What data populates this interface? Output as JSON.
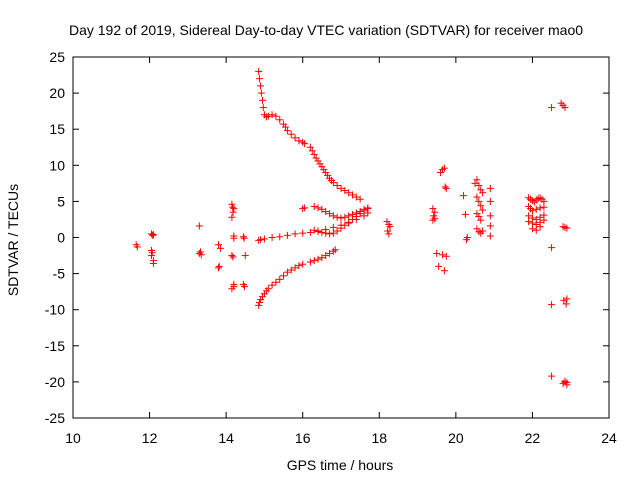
{
  "chart_data": {
    "type": "scatter",
    "title": "Day 192 of 2019, Sidereal Day-to-day VTEC variation (SDTVAR) for receiver mao0",
    "xlabel": "GPS time / hours",
    "ylabel": "SDTVAR / TECUs",
    "xlim": [
      10,
      24
    ],
    "ylim": [
      -25,
      25
    ],
    "xticks": [
      10,
      12,
      14,
      16,
      18,
      20,
      22,
      24
    ],
    "yticks": [
      25,
      20,
      15,
      10,
      5,
      0,
      -5,
      -10,
      -15,
      -20,
      -25
    ],
    "grid": false,
    "marker": "plus",
    "marker_color": "#ff0000",
    "series": [
      {
        "name": "SDTVAR",
        "x": [
          11.65,
          11.68,
          12.05,
          12.08,
          12.1,
          12.05,
          12.07,
          12.1,
          12.1,
          12.05,
          13.3,
          13.33,
          13.35,
          13.3,
          13.8,
          13.85,
          13.82,
          13.8,
          14.15,
          14.17,
          14.2,
          14.18,
          14.15,
          14.2,
          14.2,
          14.15,
          14.18,
          14.2,
          14.15,
          14.2,
          14.45,
          14.47,
          14.5,
          14.45,
          14.48,
          14.85,
          14.87,
          14.9,
          14.92,
          14.95,
          14.97,
          15.0,
          15.05,
          15.1,
          15.2,
          15.3,
          15.4,
          15.5,
          15.55,
          15.6,
          15.7,
          15.8,
          15.9,
          16.0,
          16.05,
          16.2,
          16.25,
          16.3,
          16.35,
          16.4,
          16.45,
          16.5,
          16.55,
          16.6,
          16.65,
          16.7,
          16.75,
          16.8,
          16.9,
          17.0,
          17.1,
          17.2,
          17.3,
          17.4,
          17.5,
          14.85,
          14.9,
          15.0,
          15.2,
          15.4,
          15.6,
          15.8,
          16.0,
          16.2,
          16.4,
          16.6,
          16.8,
          17.0,
          17.2,
          17.4,
          17.6,
          17.7,
          14.85,
          14.87,
          14.9,
          14.95,
          15.0,
          15.05,
          15.1,
          15.2,
          15.3,
          15.4,
          15.5,
          15.6,
          15.7,
          15.8,
          15.9,
          16.0,
          16.2,
          16.3,
          16.4,
          16.5,
          16.6,
          16.7,
          16.8,
          16.85,
          16.0,
          16.05,
          16.3,
          16.4,
          16.5,
          16.6,
          16.7,
          16.8,
          16.9,
          17.0,
          17.1,
          17.2,
          17.3,
          17.4,
          17.5,
          17.6,
          17.7,
          16.3,
          16.4,
          16.5,
          16.6,
          16.7,
          16.8,
          16.9,
          17.0,
          17.1,
          17.2,
          17.3,
          17.4,
          17.5,
          17.6,
          17.7,
          18.2,
          18.25,
          18.28,
          18.22,
          18.25,
          19.4,
          19.45,
          19.42,
          19.45,
          19.4,
          19.6,
          19.65,
          19.7,
          19.72,
          19.75,
          19.5,
          19.55,
          19.65,
          19.7,
          19.75,
          20.2,
          20.25,
          20.3,
          20.28,
          20.5,
          20.55,
          20.6,
          20.65,
          20.7,
          20.55,
          20.6,
          20.65,
          20.7,
          20.55,
          20.6,
          20.65,
          20.55,
          20.6,
          20.65,
          20.7,
          20.9,
          20.9,
          20.9,
          20.9,
          20.9,
          21.9,
          21.95,
          22.0,
          22.05,
          22.1,
          22.15,
          22.2,
          22.25,
          22.3,
          21.9,
          21.95,
          22.0,
          22.1,
          22.2,
          22.3,
          21.9,
          22.0,
          22.1,
          22.2,
          22.3,
          21.9,
          22.0,
          22.1,
          22.2,
          22.3,
          22.0,
          22.1,
          22.2,
          22.5,
          22.5,
          22.5,
          22.5,
          22.75,
          22.8,
          22.85,
          22.8,
          22.85,
          22.9,
          22.82,
          22.88,
          22.9,
          22.85,
          22.9,
          22.8,
          22.85,
          22.9
        ],
        "y": [
          -1.0,
          -1.3,
          0.5,
          0.3,
          0.4,
          -1.8,
          -2.1,
          -3.2,
          -3.6,
          -2.5,
          1.6,
          -2.0,
          -2.4,
          -2.2,
          -1.0,
          -1.5,
          -4.0,
          -4.2,
          4.6,
          4.2,
          4.0,
          3.5,
          2.8,
          0.2,
          -0.1,
          -2.5,
          -2.7,
          -6.8,
          -7.1,
          -6.5,
          0.1,
          -0.1,
          -2.5,
          -6.5,
          -6.8,
          23.0,
          22.0,
          21.0,
          20.0,
          19.0,
          18.0,
          17.0,
          16.7,
          16.8,
          17.0,
          16.8,
          16.3,
          15.7,
          15.3,
          14.8,
          14.3,
          13.8,
          13.4,
          13.2,
          13.0,
          12.5,
          12.0,
          11.5,
          11.0,
          10.6,
          10.2,
          9.8,
          9.4,
          9.0,
          8.6,
          8.2,
          7.9,
          7.6,
          7.2,
          6.8,
          6.5,
          6.2,
          5.9,
          5.6,
          5.3,
          -0.4,
          -0.3,
          -0.2,
          0.0,
          0.1,
          0.3,
          0.5,
          0.6,
          0.7,
          0.9,
          1.1,
          1.4,
          1.7,
          2.0,
          2.5,
          3.0,
          3.4,
          -9.4,
          -9.0,
          -8.6,
          -8.2,
          -7.8,
          -7.4,
          -7.1,
          -6.6,
          -6.2,
          -5.8,
          -5.3,
          -4.8,
          -4.5,
          -4.2,
          -3.9,
          -3.7,
          -3.4,
          -3.2,
          -3.0,
          -2.8,
          -2.5,
          -2.2,
          -1.9,
          -1.7,
          4.0,
          4.1,
          4.3,
          4.1,
          3.9,
          3.6,
          3.3,
          3.0,
          2.8,
          2.7,
          2.8,
          3.0,
          3.2,
          3.4,
          3.6,
          3.9,
          4.1,
          1.0,
          0.8,
          0.7,
          0.6,
          0.5,
          0.6,
          0.9,
          1.3,
          1.7,
          2.1,
          2.5,
          2.9,
          3.3,
          3.7,
          4.0,
          2.2,
          1.8,
          1.5,
          0.9,
          0.5,
          4.0,
          3.5,
          3.0,
          2.6,
          2.4,
          9.0,
          9.4,
          9.6,
          7.0,
          6.8,
          -2.2,
          -4.0,
          -2.4,
          -4.6,
          -2.6,
          5.8,
          3.2,
          0.0,
          -0.3,
          7.5,
          8.0,
          7.2,
          6.6,
          6.2,
          5.6,
          5.0,
          4.4,
          3.8,
          3.3,
          2.9,
          2.4,
          1.2,
          0.8,
          0.6,
          0.9,
          6.8,
          5.0,
          3.0,
          1.6,
          0.2,
          5.5,
          5.3,
          5.1,
          4.9,
          5.2,
          5.4,
          5.5,
          5.3,
          5.0,
          4.3,
          4.0,
          3.7,
          3.9,
          4.1,
          4.2,
          3.0,
          2.7,
          2.5,
          2.8,
          3.1,
          2.2,
          2.0,
          1.8,
          2.1,
          2.4,
          1.2,
          1.0,
          1.5,
          18.0,
          -1.4,
          -9.3,
          -19.2,
          18.6,
          18.3,
          18.0,
          1.5,
          1.4,
          1.3,
          -8.7,
          -9.2,
          -8.5,
          -20.0,
          -20.4,
          -20.2,
          -19.9,
          -20.1
        ]
      }
    ]
  }
}
